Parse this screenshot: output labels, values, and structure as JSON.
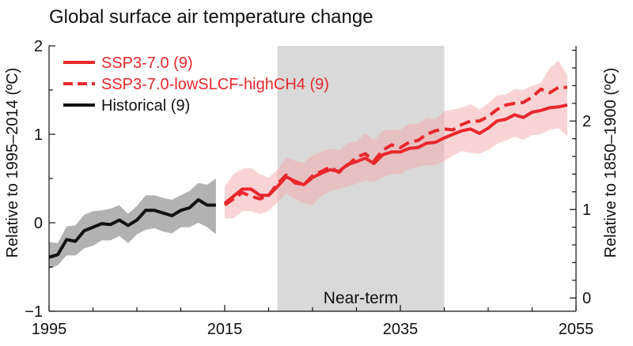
{
  "chart_data": {
    "type": "line",
    "title": "Global surface air temperature change",
    "ylabel": "Relative to 1995–2014 (ºC)",
    "ylabel_right": "Relative to 1850–1900 (ºC)",
    "xlim": [
      1995,
      2055
    ],
    "ylim": [
      -1,
      2
    ],
    "ylim_right_offset": 0.85,
    "x_ticks": [
      1995,
      2015,
      2035,
      2055
    ],
    "x_tick_labels": [
      "1995",
      "2015",
      "2035",
      "2055"
    ],
    "y_ticks": [
      -1,
      0,
      1,
      2
    ],
    "y_tick_labels": [
      "−1",
      "0",
      "1",
      "2"
    ],
    "y_right_ticks": [
      0,
      1,
      2
    ],
    "y_right_tick_labels": [
      "0",
      "1",
      "2"
    ],
    "near_term": {
      "label": "Near-term",
      "x_range": [
        2021,
        2040
      ],
      "color": "#d9d9d9"
    },
    "legend_position": "top-left",
    "series": [
      {
        "name": "SSP3-7.0 (9)",
        "color": "#e8272d",
        "dash": "solid",
        "x": [
          2015,
          2016,
          2017,
          2018,
          2019,
          2020,
          2021,
          2022,
          2023,
          2024,
          2025,
          2026,
          2027,
          2028,
          2029,
          2030,
          2031,
          2032,
          2033,
          2034,
          2035,
          2036,
          2037,
          2038,
          2039,
          2040,
          2041,
          2042,
          2043,
          2044,
          2045,
          2046,
          2047,
          2048,
          2049,
          2050,
          2051,
          2052,
          2053,
          2054
        ],
        "values": [
          0.22,
          0.3,
          0.38,
          0.38,
          0.31,
          0.31,
          0.41,
          0.52,
          0.47,
          0.43,
          0.51,
          0.56,
          0.6,
          0.58,
          0.66,
          0.69,
          0.73,
          0.67,
          0.77,
          0.8,
          0.8,
          0.84,
          0.85,
          0.9,
          0.91,
          0.96,
          1.0,
          1.04,
          1.06,
          1.01,
          1.07,
          1.15,
          1.17,
          1.22,
          1.19,
          1.25,
          1.27,
          1.3,
          1.31,
          1.33
        ],
        "band_low": [
          0.05,
          0.05,
          0.13,
          0.13,
          0.1,
          0.13,
          0.23,
          0.33,
          0.27,
          0.22,
          0.2,
          0.3,
          0.36,
          0.38,
          0.41,
          0.44,
          0.48,
          0.46,
          0.51,
          0.55,
          0.55,
          0.61,
          0.63,
          0.65,
          0.65,
          0.7,
          0.76,
          0.81,
          0.79,
          0.78,
          0.82,
          0.89,
          0.93,
          0.97,
          0.94,
          0.99,
          1.0,
          1.05,
          1.07,
          0.98
        ],
        "band_high": [
          0.41,
          0.55,
          0.61,
          0.62,
          0.55,
          0.51,
          0.6,
          0.74,
          0.7,
          0.68,
          0.76,
          0.8,
          0.84,
          0.82,
          0.9,
          0.92,
          1.01,
          0.93,
          1.04,
          1.05,
          1.05,
          1.12,
          1.12,
          1.18,
          1.17,
          1.26,
          1.28,
          1.3,
          1.34,
          1.28,
          1.35,
          1.44,
          1.45,
          1.51,
          1.5,
          1.55,
          1.58,
          1.75,
          1.83,
          1.67
        ]
      },
      {
        "name": "SSP3-7.0-lowSLCF-highCH4 (9)",
        "color": "#e8272d",
        "dash": "dashed",
        "x": [
          2015,
          2016,
          2017,
          2018,
          2019,
          2020,
          2021,
          2022,
          2023,
          2024,
          2025,
          2026,
          2027,
          2028,
          2029,
          2030,
          2031,
          2032,
          2033,
          2034,
          2035,
          2036,
          2037,
          2038,
          2039,
          2040,
          2041,
          2042,
          2043,
          2044,
          2045,
          2046,
          2047,
          2048,
          2049,
          2050,
          2051,
          2052,
          2053,
          2054
        ],
        "values": [
          0.2,
          0.27,
          0.34,
          0.3,
          0.27,
          0.31,
          0.44,
          0.54,
          0.45,
          0.43,
          0.53,
          0.58,
          0.63,
          0.57,
          0.65,
          0.74,
          0.78,
          0.7,
          0.82,
          0.88,
          0.85,
          0.91,
          0.93,
          1.0,
          1.04,
          1.06,
          1.05,
          1.11,
          1.15,
          1.15,
          1.2,
          1.28,
          1.33,
          1.35,
          1.36,
          1.42,
          1.51,
          1.47,
          1.53,
          1.53
        ],
        "band_low": null,
        "band_high": null
      },
      {
        "name": "Historical (9)",
        "color": "#111111",
        "dash": "solid",
        "x": [
          1995,
          1996,
          1997,
          1998,
          1999,
          2000,
          2001,
          2002,
          2003,
          2004,
          2005,
          2006,
          2007,
          2008,
          2009,
          2010,
          2011,
          2012,
          2013,
          2014
        ],
        "values": [
          -0.39,
          -0.36,
          -0.19,
          -0.21,
          -0.09,
          -0.05,
          -0.01,
          -0.02,
          0.03,
          -0.03,
          0.03,
          0.14,
          0.14,
          0.11,
          0.08,
          0.14,
          0.17,
          0.26,
          0.2,
          0.2
        ],
        "band_low": [
          -0.52,
          -0.48,
          -0.37,
          -0.37,
          -0.29,
          -0.26,
          -0.2,
          -0.2,
          -0.15,
          -0.23,
          -0.13,
          -0.08,
          -0.06,
          -0.1,
          -0.12,
          -0.05,
          -0.05,
          0.0,
          -0.05,
          -0.13
        ],
        "band_high": [
          -0.22,
          -0.23,
          -0.04,
          -0.03,
          0.09,
          0.13,
          0.14,
          0.16,
          0.2,
          0.1,
          0.19,
          0.31,
          0.31,
          0.28,
          0.26,
          0.31,
          0.36,
          0.45,
          0.43,
          0.5
        ]
      }
    ]
  }
}
